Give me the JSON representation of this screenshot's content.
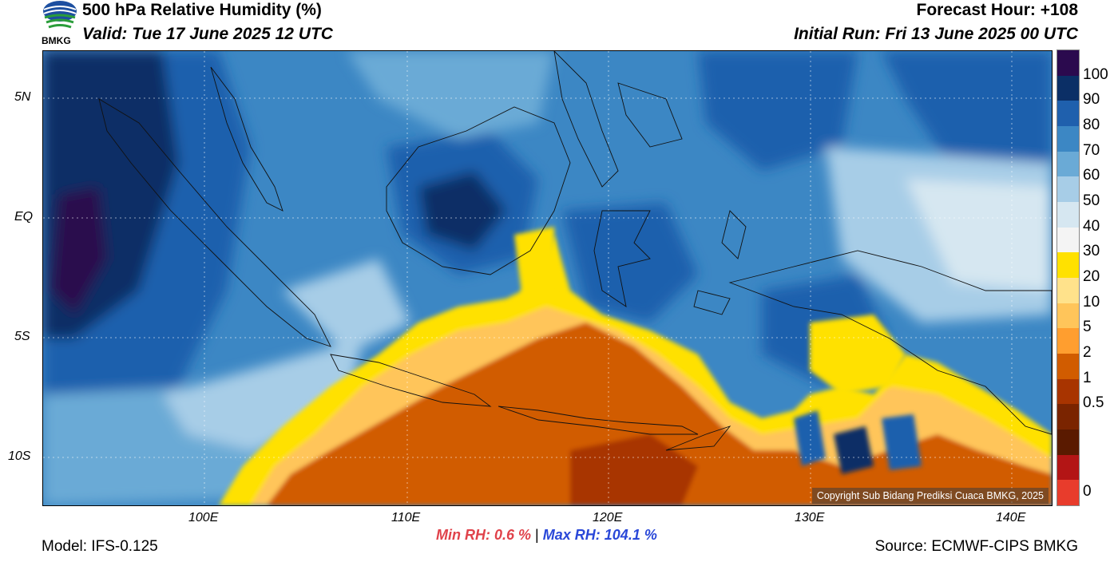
{
  "header": {
    "title": "500 hPa Relative Humidity (%)",
    "valid": "Valid: Tue 17 June 2025 12 UTC",
    "forecast_hour": "Forecast Hour: +108",
    "initial_run": "Initial Run: Fri 13 June 2025 00 UTC",
    "logo_text": "BMKG"
  },
  "map": {
    "lat_labels": [
      "5N",
      "EQ",
      "5S",
      "10S"
    ],
    "lon_labels": [
      "100E",
      "110E",
      "120E",
      "130E",
      "140E"
    ],
    "copyright": "Copyright Sub Bidang Prediksi Cuaca BMKG, 2025"
  },
  "colorbar": {
    "labels": [
      "100",
      "90",
      "80",
      "70",
      "60",
      "50",
      "40",
      "30",
      "20",
      "10",
      "5",
      "2",
      "1",
      "0.5",
      "0"
    ],
    "colors": [
      "#2b0a4e",
      "#0b2f66",
      "#1f60ad",
      "#3c87c4",
      "#6aaad6",
      "#a7cde7",
      "#d6e7f1",
      "#f4f4f4",
      "#ffe100",
      "#ffe28b",
      "#ffc55a",
      "#ff9e2f",
      "#d15c00",
      "#a83400",
      "#7a2400",
      "#5a1a00",
      "#b31515",
      "#e83c2c"
    ]
  },
  "footer": {
    "model": "Model: IFS-0.125",
    "min_label": "Min RH:",
    "min_value": "0.6 %",
    "separator": "|",
    "max_label": "Max RH:",
    "max_value": "104.1 %",
    "source": "Source: ECMWF-CIPS BMKG"
  }
}
